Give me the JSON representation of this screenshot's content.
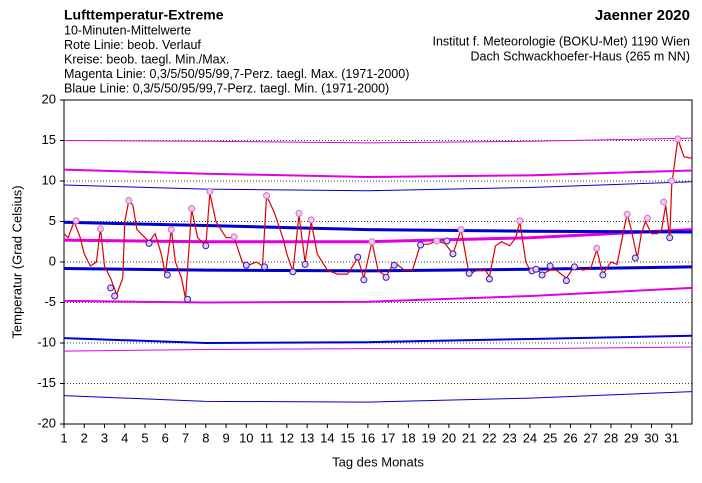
{
  "chart_data": {
    "type": "line",
    "title": "Lufttemperatur-Extreme",
    "subtitle": [
      "10-Minuten-Mittelwerte",
      "Rote Linie: beob. Verlauf",
      "Kreise: beob. taegl. Min./Max.",
      "Magenta Linie: 0,3/5/50/95/99,7-Perz. taegl. Max. (1971-2000)",
      "Blaue Linie: 0,3/5/50/95/99,7-Perz. taegl. Min. (1971-2000)"
    ],
    "right_title": "Jaenner 2020",
    "right_lines": [
      "Institut f. Meteorologie (BOKU-Met) 1190 Wien",
      "Dach Schwackhoefer-Haus (265 m NN)"
    ],
    "x_label": "Tag des Monats",
    "y_label": "Temperatur (Grad Celsius)",
    "xlim": [
      1,
      32
    ],
    "ylim": [
      -20,
      20
    ],
    "xticks": [
      1,
      2,
      3,
      4,
      5,
      6,
      7,
      8,
      9,
      10,
      11,
      12,
      13,
      14,
      15,
      16,
      17,
      18,
      19,
      20,
      21,
      22,
      23,
      24,
      25,
      26,
      27,
      28,
      29,
      30,
      31
    ],
    "yticks": [
      -20,
      -15,
      -10,
      -5,
      0,
      5,
      10,
      15,
      20
    ],
    "grid": true,
    "series": [
      {
        "color": "#e000e0",
        "width": 1,
        "x": [
          1,
          8,
          16,
          24,
          32
        ],
        "values": [
          15,
          14.9,
          14.7,
          14.9,
          15.3
        ]
      },
      {
        "color": "#e000e0",
        "width": 2,
        "x": [
          1,
          8,
          16,
          24,
          32
        ],
        "values": [
          11.4,
          10.9,
          10.5,
          10.7,
          11.3
        ]
      },
      {
        "color": "#e000e0",
        "width": 3,
        "x": [
          1,
          8,
          16,
          24,
          32
        ],
        "values": [
          2.7,
          2.5,
          2.5,
          3.0,
          4.0
        ]
      },
      {
        "color": "#e000e0",
        "width": 2,
        "x": [
          1,
          8,
          16,
          24,
          32
        ],
        "values": [
          -4.8,
          -5.0,
          -4.9,
          -4.2,
          -3.2
        ]
      },
      {
        "color": "#e000e0",
        "width": 1,
        "x": [
          1,
          8,
          16,
          24,
          32
        ],
        "values": [
          -11,
          -10.8,
          -10.7,
          -10.7,
          -10.5
        ]
      },
      {
        "color": "#0000d0",
        "width": 1,
        "x": [
          1,
          8,
          16,
          24,
          32
        ],
        "values": [
          9.5,
          9.0,
          8.8,
          9.2,
          9.9
        ]
      },
      {
        "color": "#0000d0",
        "width": 3,
        "x": [
          1,
          8,
          16,
          24,
          32
        ],
        "values": [
          4.9,
          4.5,
          4.0,
          3.8,
          3.7
        ]
      },
      {
        "color": "#0000d0",
        "width": 3,
        "x": [
          1,
          8,
          16,
          24,
          32
        ],
        "values": [
          -0.8,
          -1.0,
          -1.1,
          -0.9,
          -0.6
        ]
      },
      {
        "color": "#0000d0",
        "width": 2,
        "x": [
          1,
          8,
          16,
          24,
          32
        ],
        "values": [
          -9.4,
          -10.0,
          -9.9,
          -9.5,
          -9.1
        ]
      },
      {
        "color": "#0000d0",
        "width": 1,
        "x": [
          1,
          8,
          16,
          24,
          32
        ],
        "values": [
          -16.5,
          -17.2,
          -17.3,
          -16.8,
          -16.0
        ]
      },
      {
        "color": "#e00000",
        "width": 1.2,
        "x": [
          1.0,
          1.2,
          1.5,
          1.8,
          2.0,
          2.3,
          2.6,
          2.8,
          3.0,
          3.3,
          3.6,
          3.9,
          4.0,
          4.2,
          4.4,
          4.6,
          4.8,
          5.0,
          5.2,
          5.5,
          5.8,
          6.0,
          6.3,
          6.5,
          6.8,
          7.0,
          7.3,
          7.6,
          8.0,
          8.2,
          8.5,
          9.0,
          9.4,
          9.8,
          10.0,
          10.5,
          10.8,
          11.0,
          11.4,
          11.8,
          12.0,
          12.3,
          12.6,
          12.9,
          13.2,
          13.5,
          14.0,
          14.5,
          15.0,
          15.5,
          15.8,
          16.2,
          16.5,
          16.9,
          17.3,
          17.8,
          18.2,
          18.6,
          19.0,
          19.4,
          19.8,
          20.2,
          20.6,
          21.0,
          21.4,
          21.8,
          22.0,
          22.3,
          22.6,
          23.0,
          23.3,
          23.5,
          23.8,
          24.0,
          24.3,
          24.6,
          25.0,
          25.3,
          25.8,
          26.2,
          26.6,
          27.0,
          27.3,
          27.6,
          28.0,
          28.3,
          28.6,
          28.8,
          29.0,
          29.3,
          29.5,
          29.7,
          30.0,
          30.3,
          30.5,
          30.7,
          30.9,
          31.0,
          31.3,
          31.6,
          32.0
        ],
        "values": [
          3.5,
          3,
          5,
          3,
          1,
          -0.5,
          0,
          4.2,
          -0.5,
          -2,
          -4,
          -2,
          5,
          7.6,
          7,
          4,
          3.5,
          3,
          2.5,
          3.5,
          1,
          -1.5,
          4,
          0,
          -2,
          -4.5,
          6.5,
          3,
          2,
          8.5,
          5,
          3,
          3,
          0,
          -0.5,
          0,
          -0.5,
          8.2,
          6,
          3,
          1,
          -1.2,
          5.8,
          0,
          5,
          1,
          -1,
          -1.5,
          -1.5,
          0.5,
          -2,
          2.5,
          -1,
          -1.8,
          0,
          -1,
          -1,
          2.2,
          2.2,
          2.6,
          2.3,
          1,
          4,
          -1.5,
          -1,
          -1,
          -1.8,
          2,
          2.5,
          2,
          3,
          5,
          0,
          -1,
          -0.8,
          -1.5,
          -1,
          -1,
          -2,
          -0.5,
          -1,
          -0.8,
          1.5,
          -1.5,
          0,
          -0.3,
          3.5,
          6,
          4,
          0.5,
          3.5,
          5,
          3.5,
          3.5,
          4,
          7,
          3,
          9.5,
          15.2,
          13,
          12.8
        ]
      },
      {
        "color": "#d070d0",
        "mark": "circle",
        "x": [
          1.6,
          2.8,
          4.2,
          6.3,
          7.3,
          8.2,
          9.4,
          11.0,
          12.6,
          13.2,
          16.2,
          19.4,
          20.6,
          23.5,
          27.3,
          28.8,
          29.8,
          30.6,
          31.0,
          31.3
        ],
        "values": [
          5.1,
          4.1,
          7.6,
          4,
          6.6,
          8.7,
          3.1,
          8.2,
          6.0,
          5.2,
          2.5,
          2.6,
          4,
          5.1,
          1.7,
          5.9,
          5.4,
          7.4,
          10,
          15.2
        ]
      },
      {
        "color": "#2020c0",
        "mark": "circle",
        "x": [
          3.3,
          3.5,
          5.2,
          6.1,
          7.1,
          8.0,
          10.0,
          10.9,
          12.3,
          12.9,
          15.5,
          15.8,
          16.9,
          17.3,
          18.6,
          19.9,
          20.2,
          21.0,
          22.0,
          24.1,
          24.3,
          24.6,
          25.0,
          25.8,
          26.2,
          27.6,
          29.2,
          30.9
        ],
        "values": [
          -3.2,
          -4.2,
          2.3,
          -1.6,
          -4.6,
          2,
          -0.4,
          -0.6,
          -1.2,
          -0.3,
          0.6,
          -2.2,
          -1.9,
          -0.4,
          2.1,
          2.6,
          1.0,
          -1.4,
          -2.1,
          -1.1,
          -0.9,
          -1.6,
          -0.5,
          -2.3,
          -0.6,
          -1.6,
          0.5,
          3
        ]
      }
    ]
  }
}
